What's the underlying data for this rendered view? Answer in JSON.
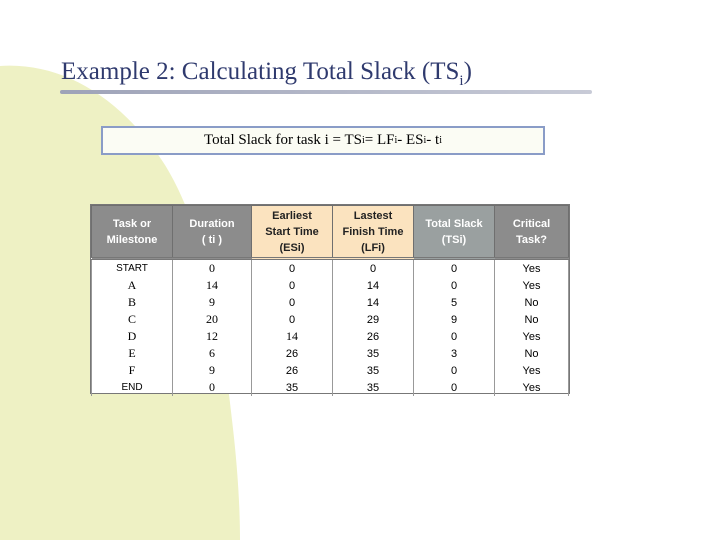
{
  "title": {
    "main": "Example 2: Calculating Total Slack (TS",
    "sub": "i",
    "close": ")"
  },
  "formula": {
    "p1": "Total Slack for task i = TS",
    "s1": "i",
    "p2": " = LF",
    "s2": "i",
    "p3": " - ES",
    "s3": "i",
    "p4": " - t",
    "s4": "i"
  },
  "table": {
    "headers": [
      [
        "Task or",
        "Milestone"
      ],
      [
        "Duration",
        "( ti )"
      ],
      [
        "Earliest",
        "Start Time",
        "(ESi)"
      ],
      [
        "Lastest",
        "Finish Time",
        "(LFi)"
      ],
      [
        "Total Slack",
        "(TSi)"
      ],
      [
        "Critical",
        "Task?"
      ]
    ],
    "rows": [
      [
        "START",
        "0",
        "0",
        "0",
        "0",
        "Yes"
      ],
      [
        "A",
        "14",
        "0",
        "14",
        "0",
        "Yes"
      ],
      [
        "B",
        "9",
        "0",
        "14",
        "5",
        "No"
      ],
      [
        "C",
        "20",
        "0",
        "29",
        "9",
        "No"
      ],
      [
        "D",
        "12",
        "14",
        "26",
        "0",
        "Yes"
      ],
      [
        "E",
        "6",
        "26",
        "35",
        "3",
        "No"
      ],
      [
        "F",
        "9",
        "26",
        "35",
        "0",
        "Yes"
      ],
      [
        "END",
        "0",
        "35",
        "35",
        "0",
        "Yes"
      ]
    ]
  },
  "colors": {
    "title": "#2f3a6e",
    "background_shape": "#eef1c4",
    "box_border": "#8a9cc7",
    "header_highlight": "#fbe3bf"
  }
}
